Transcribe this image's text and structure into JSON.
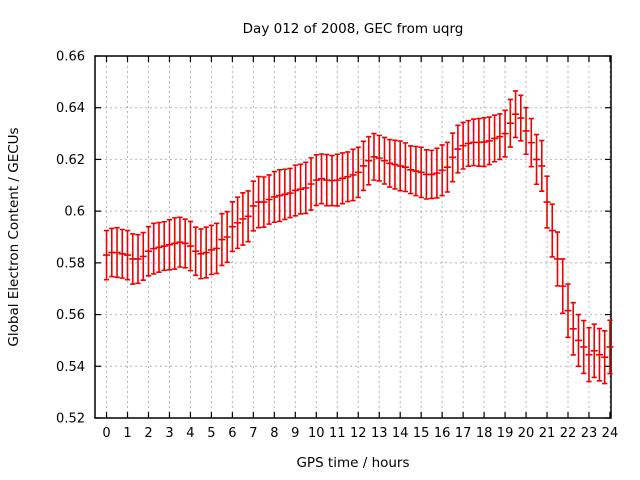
{
  "chart_data": {
    "type": "line",
    "style": "errorbars",
    "title": "Day 012 of 2008, GEC from uqrg",
    "xlabel": "GPS time / hours",
    "ylabel": "Global Electron Content / GECUs",
    "xlim": [
      -0.55,
      24.05
    ],
    "ylim": [
      0.52,
      0.66
    ],
    "grid": true,
    "legend": false,
    "xticks": {
      "values": [
        0,
        1,
        2,
        3,
        4,
        5,
        6,
        7,
        8,
        9,
        10,
        11,
        12,
        13,
        14,
        15,
        16,
        17,
        18,
        19,
        20,
        21,
        22,
        23,
        24
      ],
      "labels": [
        "0",
        "1",
        "2",
        "3",
        "4",
        "5",
        "6",
        "7",
        "8",
        "9",
        "10",
        "11",
        "12",
        "13",
        "14",
        "15",
        "16",
        "17",
        "18",
        "19",
        "20",
        "21",
        "22",
        "23",
        "24"
      ]
    },
    "yticks": {
      "values": [
        0.52,
        0.54,
        0.56,
        0.58,
        0.6,
        0.62,
        0.64,
        0.66
      ],
      "labels": [
        "0.52",
        "0.54",
        "0.56",
        "0.58",
        "0.6",
        "0.62",
        "0.64",
        "0.66"
      ]
    },
    "colors": {
      "series": "#ee0000",
      "grid": "#b4b4b4",
      "border": "#000000",
      "background": "#ffffff",
      "text": "#000000"
    },
    "series": [
      {
        "name": "GEC",
        "color": "#ee0000",
        "x": [
          0,
          0.25,
          0.5,
          0.75,
          1,
          1.25,
          1.5,
          1.75,
          2,
          2.25,
          2.5,
          2.75,
          3,
          3.25,
          3.5,
          3.75,
          4,
          4.25,
          4.5,
          4.75,
          5,
          5.25,
          5.5,
          5.75,
          6,
          6.25,
          6.5,
          6.75,
          7,
          7.25,
          7.5,
          7.75,
          8,
          8.25,
          8.5,
          8.75,
          9,
          9.25,
          9.5,
          9.75,
          10,
          10.25,
          10.5,
          10.75,
          11,
          11.25,
          11.5,
          11.75,
          12,
          12.25,
          12.5,
          12.75,
          13,
          13.25,
          13.5,
          13.75,
          14,
          14.25,
          14.5,
          14.75,
          15,
          15.25,
          15.5,
          15.75,
          16,
          16.25,
          16.5,
          16.75,
          17,
          17.25,
          17.5,
          17.75,
          18,
          18.25,
          18.5,
          18.75,
          19,
          19.25,
          19.5,
          19.75,
          20,
          20.25,
          20.5,
          20.75,
          21,
          21.25,
          21.5,
          21.75,
          22,
          22.25,
          22.5,
          22.75,
          23,
          23.25,
          23.5,
          23.75,
          24
        ],
        "y": [
          0.583,
          0.584,
          0.584,
          0.5835,
          0.583,
          0.5815,
          0.5815,
          0.5825,
          0.5845,
          0.5855,
          0.586,
          0.5865,
          0.587,
          0.5875,
          0.588,
          0.5875,
          0.5865,
          0.5845,
          0.5835,
          0.584,
          0.585,
          0.5856,
          0.589,
          0.59,
          0.594,
          0.5955,
          0.597,
          0.598,
          0.602,
          0.6035,
          0.6035,
          0.6045,
          0.6055,
          0.606,
          0.6065,
          0.607,
          0.608,
          0.6085,
          0.609,
          0.6105,
          0.612,
          0.6125,
          0.612,
          0.6118,
          0.612,
          0.6127,
          0.6133,
          0.614,
          0.615,
          0.6175,
          0.6195,
          0.621,
          0.6205,
          0.6195,
          0.6185,
          0.618,
          0.6175,
          0.617,
          0.616,
          0.6155,
          0.615,
          0.6142,
          0.6142,
          0.6147,
          0.6158,
          0.617,
          0.6208,
          0.624,
          0.6253,
          0.6262,
          0.6266,
          0.6266,
          0.6267,
          0.6272,
          0.6281,
          0.6288,
          0.63,
          0.634,
          0.6375,
          0.636,
          0.631,
          0.6265,
          0.62,
          0.6175,
          0.6035,
          0.5925,
          0.5815,
          0.571,
          0.5615,
          0.5545,
          0.55,
          0.5475,
          0.5445,
          0.546,
          0.5445,
          0.5435,
          0.5475
        ],
        "yerr": [
          0.0095,
          0.0093,
          0.0096,
          0.0094,
          0.0095,
          0.0097,
          0.0094,
          0.0092,
          0.0095,
          0.0098,
          0.0096,
          0.0094,
          0.0097,
          0.0099,
          0.0096,
          0.0094,
          0.0095,
          0.0093,
          0.0096,
          0.0098,
          0.0095,
          0.0097,
          0.01,
          0.0098,
          0.0096,
          0.0099,
          0.0101,
          0.0098,
          0.0096,
          0.0099,
          0.0097,
          0.0095,
          0.0098,
          0.01,
          0.0097,
          0.0095,
          0.0098,
          0.0096,
          0.0099,
          0.0101,
          0.0098,
          0.0096,
          0.0099,
          0.0097,
          0.01,
          0.0098,
          0.0096,
          0.0099,
          0.0097,
          0.0095,
          0.0093,
          0.009,
          0.0088,
          0.009,
          0.0092,
          0.0094,
          0.0096,
          0.0094,
          0.0092,
          0.0095,
          0.0097,
          0.0095,
          0.0093,
          0.0096,
          0.0098,
          0.0096,
          0.0094,
          0.0092,
          0.009,
          0.0088,
          0.009,
          0.0092,
          0.0094,
          0.0092,
          0.009,
          0.0088,
          0.009,
          0.0092,
          0.009,
          0.0088,
          0.009,
          0.0093,
          0.0096,
          0.0098,
          0.01,
          0.0102,
          0.0104,
          0.0105,
          0.0103,
          0.0101,
          0.01,
          0.0102,
          0.0104,
          0.0103,
          0.0101,
          0.0102,
          0.0103
        ]
      }
    ]
  }
}
